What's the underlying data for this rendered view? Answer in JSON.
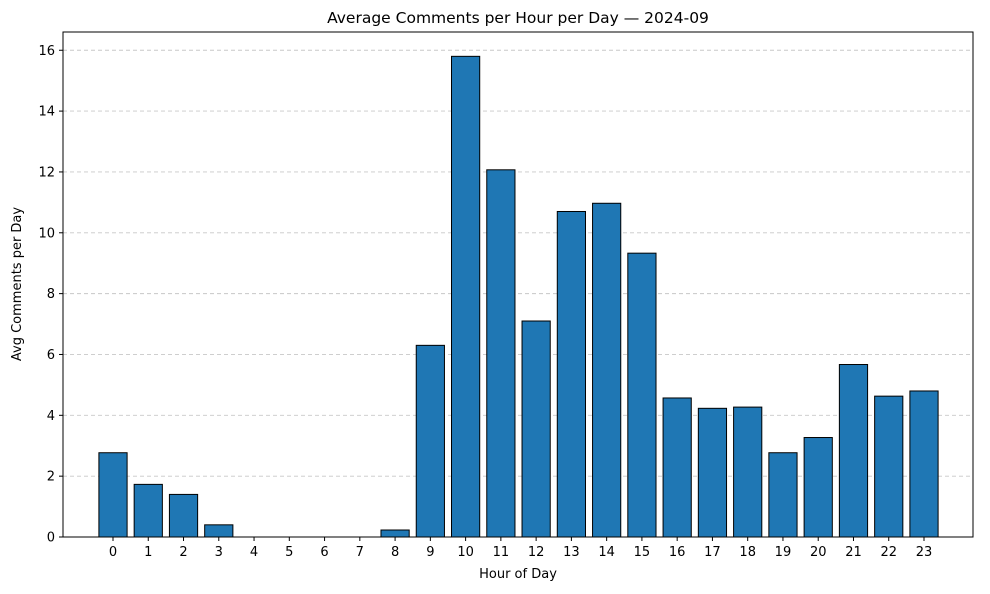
{
  "chart_data": {
    "type": "bar",
    "title": "Average Comments per Hour per Day — 2024-09",
    "xlabel": "Hour of Day",
    "ylabel": "Avg Comments per Day",
    "categories": [
      "0",
      "1",
      "2",
      "3",
      "4",
      "5",
      "6",
      "7",
      "8",
      "9",
      "10",
      "11",
      "12",
      "13",
      "14",
      "15",
      "16",
      "17",
      "18",
      "19",
      "20",
      "21",
      "22",
      "23"
    ],
    "values": [
      2.77,
      1.73,
      1.4,
      0.4,
      0.0,
      0.0,
      0.0,
      0.0,
      0.23,
      6.3,
      15.8,
      12.07,
      7.1,
      10.7,
      10.97,
      9.33,
      4.57,
      4.23,
      4.27,
      2.77,
      3.27,
      5.67,
      4.63,
      4.8
    ],
    "ylim": [
      0,
      16.6
    ],
    "yticks": [
      0,
      2,
      4,
      6,
      8,
      10,
      12,
      14,
      16
    ],
    "grid": "y, dashed",
    "colors": {
      "bar_fill": "#1f77b4",
      "bar_edge": "#000000",
      "grid": "#c8c8c8",
      "axis": "#000000"
    }
  }
}
